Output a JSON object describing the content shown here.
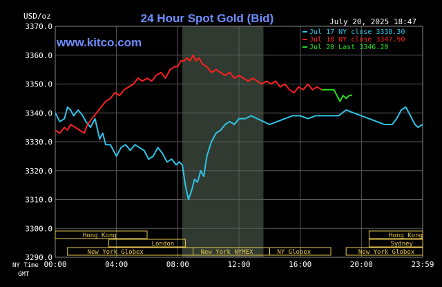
{
  "header": {
    "unit": "USD/oz",
    "title": "24 Hour Spot Gold (Bid)",
    "timestamp": "July 20, 2025 18:47",
    "watermark": "www.kitco.com"
  },
  "x_axis_label": "NY Time",
  "gmt_label": "GMT",
  "colors": {
    "background": "#000000",
    "grid": "#5a5a5a",
    "title": "#6e8cff",
    "axis_text": "#ffffff",
    "jul17": "#2ec4e8",
    "jul18": "#ff2020",
    "jul20": "#20e020",
    "session_box": "#e8c850",
    "session_highlight": "#303a30"
  },
  "legend": [
    {
      "label": "Jul 17 NY close 3338.30",
      "color": "#2ec4e8"
    },
    {
      "label": "Jul 18 NY close 3347.90",
      "color": "#ff2020"
    },
    {
      "label": "Jul 20 Last 3346.20",
      "color": "#20e020"
    }
  ],
  "sessions": [
    {
      "name": "Hong Kong",
      "start": 0,
      "end": 6,
      "row": 0,
      "label_at": 1.8
    },
    {
      "name": "Hong Kong",
      "start": 20.5,
      "end": 24,
      "row": 0,
      "label_at": 21.8
    },
    {
      "name": "London",
      "start": 3.5,
      "end": 8.5,
      "row": 1,
      "label_at": 6.3
    },
    {
      "name": "Sydney",
      "start": 20.5,
      "end": 24,
      "row": 1,
      "label_at": 21.9
    },
    {
      "name": "New York Globex",
      "start": 0.8,
      "end": 9,
      "row": 2,
      "label_at": 2.1
    },
    {
      "name": "New York NYMEX",
      "start": 9,
      "end": 14,
      "row": 2,
      "label_at": 9.5
    },
    {
      "name": "NY Globex",
      "start": 14,
      "end": 18,
      "row": 2,
      "label_at": 14.5
    },
    {
      "name": "New York Globex",
      "start": 19,
      "end": 24,
      "row": 2,
      "label_at": 19.8
    }
  ],
  "chart_data": {
    "type": "line",
    "title": "24 Hour Spot Gold (Bid)",
    "ylabel": "USD/oz",
    "xlabel": "NY Time",
    "ylim": [
      3290,
      3370
    ],
    "xlim": [
      0,
      24
    ],
    "x_ticks": [
      {
        "value": 0,
        "label": "00:00"
      },
      {
        "value": 4,
        "label": "04:00"
      },
      {
        "value": 8,
        "label": "08:00"
      },
      {
        "value": 12,
        "label": "12:00"
      },
      {
        "value": 16,
        "label": "16:00"
      },
      {
        "value": 20,
        "label": "20:00"
      },
      {
        "value": 24,
        "label": "23:59"
      }
    ],
    "y_ticks": [
      {
        "value": 3290,
        "label": "3290.0"
      },
      {
        "value": 3300,
        "label": "3300.0"
      },
      {
        "value": 3310,
        "label": "3310.0"
      },
      {
        "value": 3320,
        "label": "3320.0"
      },
      {
        "value": 3330,
        "label": "3330.0"
      },
      {
        "value": 3340,
        "label": "3340.0"
      },
      {
        "value": 3350,
        "label": "3350.0"
      },
      {
        "value": 3360,
        "label": "3360.0"
      },
      {
        "value": 3370,
        "label": "3370.0"
      }
    ],
    "shaded_region": [
      8.3,
      13.6
    ],
    "grid": true,
    "legend_position": "top-right",
    "series": [
      {
        "name": "Jul 17 NY close 3338.30",
        "color": "#2ec4e8",
        "x": [
          0,
          0.3,
          0.6,
          0.8,
          1.0,
          1.2,
          1.5,
          1.8,
          2.0,
          2.3,
          2.6,
          2.9,
          3.1,
          3.3,
          3.6,
          4.0,
          4.3,
          4.6,
          4.9,
          5.2,
          5.5,
          5.8,
          6.1,
          6.4,
          6.7,
          7.0,
          7.3,
          7.6,
          7.9,
          8.1,
          8.3,
          8.5,
          8.7,
          8.9,
          9.1,
          9.3,
          9.5,
          9.7,
          9.9,
          10.2,
          10.5,
          10.8,
          11.1,
          11.4,
          11.7,
          12.0,
          12.4,
          12.8,
          13.2,
          13.6,
          14.0,
          14.5,
          15.0,
          15.5,
          16.0,
          16.5,
          17.0,
          17.5,
          18.0,
          18.5,
          19.0,
          19.5,
          20.0,
          20.5,
          21.0,
          21.5,
          22.0,
          22.3,
          22.6,
          22.9,
          23.2,
          23.5,
          23.7,
          23.99
        ],
        "y": [
          3340,
          3337,
          3338,
          3342,
          3341,
          3339,
          3341,
          3339,
          3337,
          3335,
          3338,
          3331,
          3333,
          3329,
          3329,
          3325,
          3328,
          3329,
          3327,
          3329,
          3328,
          3327,
          3324,
          3325,
          3328,
          3326,
          3323,
          3324,
          3322,
          3323,
          3322,
          3315,
          3310,
          3313,
          3317,
          3316,
          3320,
          3318,
          3325,
          3330,
          3333,
          3334,
          3336,
          3337,
          3336,
          3338,
          3338,
          3339,
          3338,
          3337,
          3336,
          3337,
          3338,
          3339,
          3339,
          3338,
          3339,
          3339,
          3339,
          3339,
          3341,
          3340,
          3339,
          3338,
          3337,
          3336,
          3336,
          3338,
          3341,
          3342,
          3339,
          3336,
          3335,
          3336
        ]
      },
      {
        "name": "Jul 18 NY close 3347.90",
        "color": "#ff2020",
        "x": [
          0,
          0.3,
          0.6,
          0.8,
          1.0,
          1.3,
          1.6,
          1.9,
          2.1,
          2.4,
          2.7,
          3.0,
          3.3,
          3.6,
          3.9,
          4.2,
          4.5,
          4.8,
          5.1,
          5.4,
          5.7,
          6.0,
          6.3,
          6.6,
          6.9,
          7.2,
          7.5,
          7.8,
          8.0,
          8.2,
          8.4,
          8.6,
          8.8,
          9.0,
          9.2,
          9.4,
          9.6,
          9.9,
          10.2,
          10.5,
          10.8,
          11.1,
          11.4,
          11.7,
          12.0,
          12.3,
          12.6,
          12.9,
          13.2,
          13.5,
          13.8,
          14.1,
          14.4,
          14.7,
          15.0,
          15.3,
          15.6,
          15.9,
          16.2,
          16.5,
          16.8,
          17.1,
          17.4
        ],
        "y": [
          3334,
          3333,
          3335,
          3334,
          3336,
          3335,
          3334,
          3333,
          3336,
          3338,
          3340,
          3342,
          3344,
          3345,
          3347,
          3346,
          3348,
          3349,
          3350,
          3352,
          3351,
          3352,
          3351,
          3353,
          3354,
          3352,
          3355,
          3356,
          3356,
          3358,
          3358,
          3359,
          3358,
          3360,
          3358,
          3359,
          3357,
          3356,
          3354,
          3355,
          3354,
          3353,
          3354,
          3352,
          3353,
          3352,
          3351,
          3352,
          3351,
          3350,
          3351,
          3350,
          3351,
          3349,
          3350,
          3348,
          3347,
          3349,
          3348,
          3350,
          3348,
          3349,
          3348
        ]
      },
      {
        "name": "Jul 20 Last 3346.20",
        "color": "#20e020",
        "x": [
          17.4,
          17.8,
          18.2,
          18.4,
          18.6,
          18.8,
          19.0,
          19.2,
          19.4
        ],
        "y": [
          3348,
          3348,
          3348,
          3346,
          3344,
          3346,
          3345,
          3346,
          3346.2
        ]
      }
    ]
  }
}
